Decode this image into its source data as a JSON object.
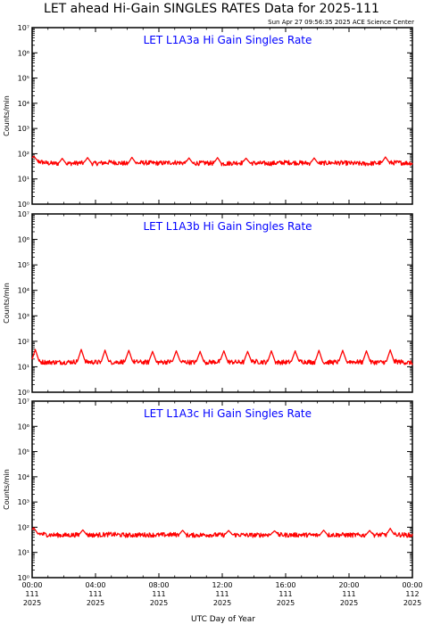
{
  "header": {
    "title": "LET ahead Hi-Gain SINGLES RATES Data for 2025-111",
    "timestamp": "Sun Apr 27 09:56:35 2025 ACE Science Center"
  },
  "colors": {
    "series": "#ff0000",
    "panel_title": "#0000ff",
    "axes": "#000000"
  },
  "x_axis": {
    "title": "UTC Day of Year",
    "range_hours": [
      0,
      24
    ],
    "ticks": [
      {
        "hour": 0,
        "time": "00:00",
        "doy": "111",
        "year": "2025"
      },
      {
        "hour": 4,
        "time": "04:00",
        "doy": "111",
        "year": "2025"
      },
      {
        "hour": 8,
        "time": "08:00",
        "doy": "111",
        "year": "2025"
      },
      {
        "hour": 12,
        "time": "12:00",
        "doy": "111",
        "year": "2025"
      },
      {
        "hour": 16,
        "time": "16:00",
        "doy": "111",
        "year": "2025"
      },
      {
        "hour": 20,
        "time": "20:00",
        "doy": "111",
        "year": "2025"
      },
      {
        "hour": 24,
        "time": "00:00",
        "doy": "112",
        "year": "2025"
      }
    ]
  },
  "chart_data": [
    {
      "type": "line",
      "title": "LET L1A3a Hi Gain Singles Rate",
      "ylabel": "Counts/min",
      "yscale": "log",
      "ylim": [
        1,
        10000000
      ],
      "yticks": [
        "10⁰",
        "10¹",
        "10²",
        "10³",
        "10⁴",
        "10⁵",
        "10⁶",
        "10⁷"
      ],
      "x_hours": [
        0,
        1,
        2,
        3,
        4,
        5,
        6,
        7,
        8,
        9,
        10,
        11,
        12,
        13,
        14,
        15,
        16,
        17,
        18,
        19,
        20,
        21,
        22,
        23,
        24
      ],
      "values": [
        55,
        42,
        40,
        43,
        41,
        46,
        40,
        44,
        42,
        45,
        41,
        43,
        40,
        44,
        42,
        41,
        45,
        43,
        41,
        44,
        42,
        40,
        43,
        44,
        42
      ],
      "peaks": [
        {
          "hour": 0.1,
          "value": 80
        },
        {
          "hour": 1.9,
          "value": 65
        },
        {
          "hour": 3.5,
          "value": 70
        },
        {
          "hour": 6.3,
          "value": 72
        },
        {
          "hour": 9.9,
          "value": 68
        },
        {
          "hour": 11.7,
          "value": 70
        },
        {
          "hour": 13.5,
          "value": 66
        },
        {
          "hour": 17.8,
          "value": 68
        },
        {
          "hour": 22.3,
          "value": 74
        }
      ]
    },
    {
      "type": "line",
      "title": "LET L1A3b Hi Gain Singles Rate",
      "ylabel": "Counts/min",
      "yscale": "log",
      "ylim": [
        1,
        10000000
      ],
      "yticks": [
        "10⁰",
        "10¹",
        "10²",
        "10³",
        "10⁴",
        "10⁵",
        "10⁶",
        "10⁷"
      ],
      "x_hours": [
        0,
        1,
        2,
        3,
        4,
        5,
        6,
        7,
        8,
        9,
        10,
        11,
        12,
        13,
        14,
        15,
        16,
        17,
        18,
        19,
        20,
        21,
        22,
        23,
        24
      ],
      "values": [
        16,
        15,
        15,
        16,
        15,
        15,
        16,
        15,
        15,
        16,
        15,
        15,
        16,
        15,
        16,
        15,
        15,
        16,
        15,
        15,
        16,
        15,
        15,
        16,
        14
      ],
      "peaks": [
        {
          "hour": 0.2,
          "value": 48
        },
        {
          "hour": 3.1,
          "value": 48
        },
        {
          "hour": 4.6,
          "value": 45
        },
        {
          "hour": 6.1,
          "value": 44
        },
        {
          "hour": 7.6,
          "value": 40
        },
        {
          "hour": 9.1,
          "value": 42
        },
        {
          "hour": 10.6,
          "value": 40
        },
        {
          "hour": 12.1,
          "value": 42
        },
        {
          "hour": 13.6,
          "value": 40
        },
        {
          "hour": 15.1,
          "value": 42
        },
        {
          "hour": 16.6,
          "value": 42
        },
        {
          "hour": 18.1,
          "value": 44
        },
        {
          "hour": 19.6,
          "value": 44
        },
        {
          "hour": 21.1,
          "value": 42
        },
        {
          "hour": 22.6,
          "value": 46
        }
      ]
    },
    {
      "type": "line",
      "title": "LET L1A3c Hi Gain Singles Rate",
      "ylabel": "Counts/min",
      "yscale": "log",
      "ylim": [
        1,
        10000000
      ],
      "yticks": [
        "10⁰",
        "10¹",
        "10²",
        "10³",
        "10⁴",
        "10⁵",
        "10⁶",
        "10⁷"
      ],
      "x_hours": [
        0,
        1,
        2,
        3,
        4,
        5,
        6,
        7,
        8,
        9,
        10,
        11,
        12,
        13,
        14,
        15,
        16,
        17,
        18,
        19,
        20,
        21,
        22,
        23,
        24
      ],
      "values": [
        60,
        50,
        48,
        50,
        49,
        52,
        48,
        50,
        49,
        51,
        48,
        50,
        49,
        50,
        48,
        51,
        49,
        50,
        48,
        50,
        49,
        48,
        50,
        51,
        48
      ],
      "peaks": [
        {
          "hour": 0.1,
          "value": 95
        },
        {
          "hour": 3.2,
          "value": 78
        },
        {
          "hour": 9.5,
          "value": 75
        },
        {
          "hour": 12.4,
          "value": 74
        },
        {
          "hour": 15.3,
          "value": 72
        },
        {
          "hour": 18.4,
          "value": 76
        },
        {
          "hour": 21.3,
          "value": 74
        },
        {
          "hour": 22.6,
          "value": 90
        }
      ]
    }
  ]
}
